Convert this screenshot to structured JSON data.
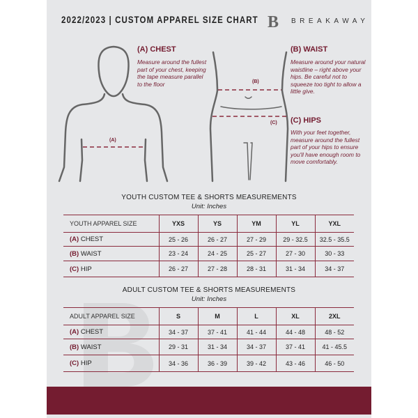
{
  "header": {
    "title": "2022/2023  |  CUSTOM APPAREL SIZE CHART",
    "logo_mark": "B",
    "logo_text": "BREAKAWAY"
  },
  "guides": {
    "chest": {
      "heading": "(A) CHEST",
      "text": "Measure around the fullest part of your chest, keeping the tape measure parallel to the floor",
      "marker": "(A)"
    },
    "waist": {
      "heading": "(B) WAIST",
      "text": "Measure around your natural waistline – right above your hips. Be careful not to squeeze too tight to allow a little give.",
      "marker": "(B)"
    },
    "hips": {
      "heading": "(C) HIPS",
      "text": "With your feet together, measure around the fullest part of your hips to ensure you'll have enough room to move comfortably.",
      "marker": "(C)"
    }
  },
  "youth": {
    "title": "YOUTH CUSTOM TEE & SHORTS MEASUREMENTS",
    "unit": "Unit: Inches",
    "header": [
      "YOUTH APPAREL SIZE",
      "YXS",
      "YS",
      "YM",
      "YL",
      "YXL"
    ],
    "rows": [
      {
        "letter": "(A)",
        "label": "CHEST",
        "values": [
          "25 - 26",
          "26 - 27",
          "27 - 29",
          "29 - 32.5",
          "32.5 - 35.5"
        ]
      },
      {
        "letter": "(B)",
        "label": "WAIST",
        "values": [
          "23 - 24",
          "24 - 25",
          "25 - 27",
          "27 - 30",
          "30 - 33"
        ]
      },
      {
        "letter": "(C)",
        "label": "HIP",
        "values": [
          "26 - 27",
          "27 - 28",
          "28 - 31",
          "31 - 34",
          "34 - 37"
        ]
      }
    ]
  },
  "adult": {
    "title": "ADULT CUSTOM TEE & SHORTS MEASUREMENTS",
    "unit": "Unit: Inches",
    "header": [
      "ADULT APPAREL SIZE",
      "S",
      "M",
      "L",
      "XL",
      "2XL"
    ],
    "rows": [
      {
        "letter": "(A)",
        "label": "CHEST",
        "values": [
          "34 - 37",
          "37 - 41",
          "41 - 44",
          "44 - 48",
          "48 - 52"
        ]
      },
      {
        "letter": "(B)",
        "label": "WAIST",
        "values": [
          "29 - 31",
          "31 - 34",
          "34 - 37",
          "37 - 41",
          "41 - 45.5"
        ]
      },
      {
        "letter": "(C)",
        "label": "HIP",
        "values": [
          "34 - 36",
          "36 - 39",
          "39 - 42",
          "43 - 46",
          "46 - 50"
        ]
      }
    ]
  },
  "colors": {
    "accent": "#741c30",
    "background": "#e6e7e9"
  }
}
